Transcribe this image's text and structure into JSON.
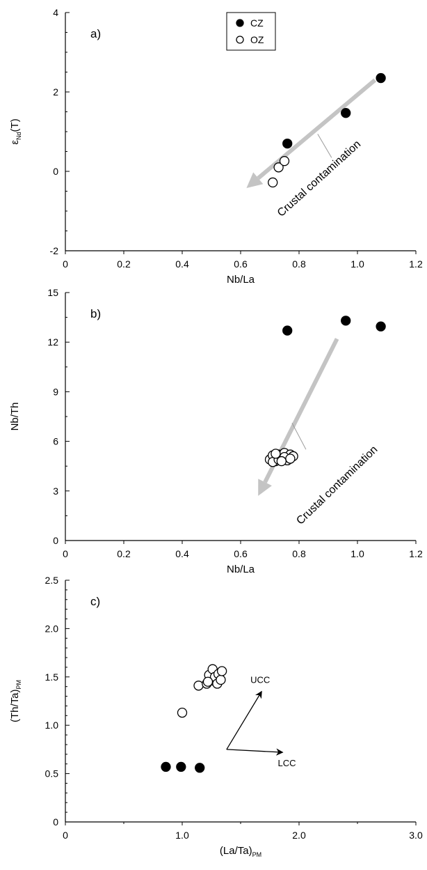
{
  "chart_data": [
    {
      "type": "scatter",
      "panel_label": "a)",
      "xlabel": "Nb/La",
      "ylabel": "εNd(T)",
      "ylabel_main": "ε",
      "ylabel_sub": "Nd",
      "ylabel_tail": "(T)",
      "xlim": [
        0,
        1.2
      ],
      "ylim": [
        -2,
        4
      ],
      "xticks": [
        0,
        0.2,
        0.4,
        0.6,
        0.8,
        1.0,
        1.2
      ],
      "xtick_labels": [
        "0",
        "0.2",
        "0.4",
        "0.6",
        "0.8",
        "1.0",
        "1.2"
      ],
      "yticks": [
        -2,
        0,
        2,
        4
      ],
      "ytick_labels": [
        "-2",
        "0",
        "2",
        "4"
      ],
      "y_minor_step": 0.5,
      "legend": {
        "position": "top-center",
        "entries": [
          {
            "name": "CZ",
            "marker": "filled"
          },
          {
            "name": "OZ",
            "marker": "open"
          }
        ]
      },
      "series": [
        {
          "name": "CZ",
          "marker": "filled",
          "x": [
            0.76,
            0.96,
            1.08
          ],
          "y": [
            0.7,
            1.47,
            2.35
          ]
        },
        {
          "name": "OZ",
          "marker": "open",
          "x": [
            0.71,
            0.73,
            0.75
          ],
          "y": [
            -0.28,
            0.1,
            0.26
          ]
        }
      ],
      "annotation": {
        "text": "Crustal contamination",
        "arrow_from": [
          1.06,
          2.3
        ],
        "arrow_to": [
          0.62,
          -0.42
        ]
      }
    },
    {
      "type": "scatter",
      "panel_label": "b)",
      "xlabel": "Nb/La",
      "ylabel": "Nb/Th",
      "xlim": [
        0,
        1.2
      ],
      "ylim": [
        0,
        15
      ],
      "xticks": [
        0,
        0.2,
        0.4,
        0.6,
        0.8,
        1.0,
        1.2
      ],
      "xtick_labels": [
        "0",
        "0.2",
        "0.4",
        "0.6",
        "0.8",
        "1.0",
        "1.2"
      ],
      "yticks": [
        0,
        3,
        6,
        9,
        12,
        15
      ],
      "ytick_labels": [
        "0",
        "3",
        "6",
        "9",
        "12",
        "15"
      ],
      "y_minor_step": 1.5,
      "series": [
        {
          "name": "CZ",
          "marker": "filled",
          "x": [
            0.76,
            0.96,
            1.08
          ],
          "y": [
            12.7,
            13.3,
            12.95
          ]
        },
        {
          "name": "OZ",
          "marker": "open",
          "x": [
            0.7,
            0.71,
            0.72,
            0.73,
            0.74,
            0.75,
            0.76,
            0.77,
            0.78,
            0.71,
            0.73,
            0.75,
            0.77,
            0.72,
            0.74
          ],
          "y": [
            4.9,
            5.15,
            4.8,
            5.2,
            5.0,
            5.3,
            4.85,
            5.2,
            5.1,
            4.75,
            4.9,
            5.05,
            4.95,
            5.25,
            4.8
          ]
        }
      ],
      "annotation": {
        "text": "Crustal contamination",
        "arrow_from": [
          0.93,
          12.2
        ],
        "arrow_to": [
          0.66,
          2.7
        ]
      }
    },
    {
      "type": "scatter",
      "panel_label": "c)",
      "xlabel": "(La/Ta)PM",
      "xlabel_main": "(La/Ta)",
      "xlabel_sub": "PM",
      "ylabel": "(Th/Ta)PM",
      "ylabel_main": "(Th/Ta)",
      "ylabel_sub": "PM",
      "xlim": [
        0,
        3.0
      ],
      "ylim": [
        0,
        2.5
      ],
      "xticks": [
        0,
        1.0,
        2.0,
        3.0
      ],
      "xtick_labels": [
        "0",
        "1.0",
        "2.0",
        "3.0"
      ],
      "x_minor_step": 0.5,
      "yticks": [
        0,
        0.5,
        1.0,
        1.5,
        2.0,
        2.5
      ],
      "ytick_labels": [
        "0",
        "0.5",
        "1.0",
        "1.5",
        "2.0",
        "2.5"
      ],
      "y_minor_step": 0.1,
      "series": [
        {
          "name": "CZ",
          "marker": "filled",
          "x": [
            0.86,
            0.99,
            1.15
          ],
          "y": [
            0.57,
            0.57,
            0.56
          ]
        },
        {
          "name": "OZ",
          "marker": "open",
          "x": [
            1.0,
            1.14,
            1.21,
            1.23,
            1.26,
            1.27,
            1.28,
            1.3,
            1.31,
            1.33,
            1.34,
            1.22
          ],
          "y": [
            1.13,
            1.41,
            1.43,
            1.52,
            1.58,
            1.46,
            1.5,
            1.43,
            1.53,
            1.47,
            1.56,
            1.45
          ]
        }
      ],
      "vectors": [
        {
          "label": "UCC",
          "from": [
            1.38,
            0.75
          ],
          "to": [
            1.68,
            1.35
          ]
        },
        {
          "label": "LCC",
          "from": [
            1.38,
            0.75
          ],
          "to": [
            1.86,
            0.72
          ]
        }
      ]
    }
  ]
}
